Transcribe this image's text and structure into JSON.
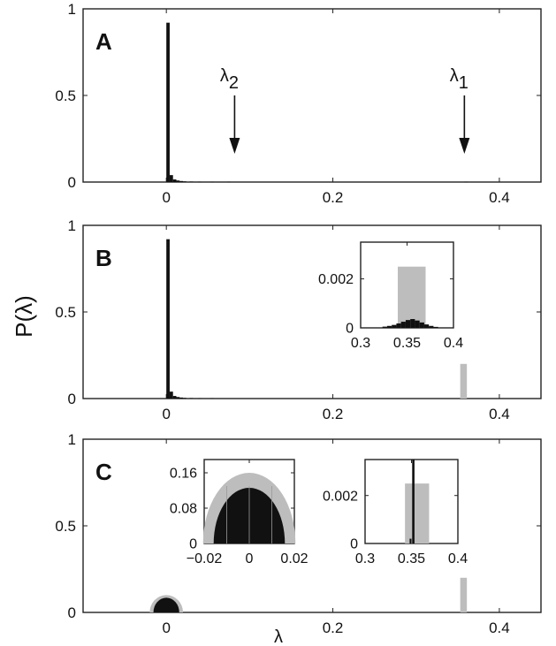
{
  "ylabel": "P(λ)",
  "xlabel": "λ",
  "colors": {
    "black": "#111111",
    "gray": "#bdbdbd",
    "axis": "#222222"
  },
  "chart_data": [
    {
      "id": "A",
      "type": "bar",
      "panel_label": "A",
      "xlim": [
        -0.1,
        0.45
      ],
      "ylim": [
        0,
        1
      ],
      "xticks": [
        {
          "v": 0,
          "t": "0"
        },
        {
          "v": 0.2,
          "t": "0.2"
        },
        {
          "v": 0.4,
          "t": "0.4"
        }
      ],
      "yticks": [
        {
          "v": 0,
          "t": "0"
        },
        {
          "v": 0.5,
          "t": "0.5"
        },
        {
          "v": 1,
          "t": "1"
        }
      ],
      "bin_width": 0.004,
      "series": [
        {
          "color": "black",
          "x": [
            0.002,
            0.006,
            0.01,
            0.014,
            0.018,
            0.022,
            0.03,
            0.04,
            0.055,
            0.075,
            0.36
          ],
          "values": [
            0.92,
            0.04,
            0.015,
            0.009,
            0.006,
            0.004,
            0.003,
            0.002,
            0.002,
            0.002,
            0.002
          ]
        }
      ],
      "annotations": [
        {
          "sym": "λ",
          "sub": "2",
          "x": 0.082
        },
        {
          "sym": "λ",
          "sub": "1",
          "x": 0.358
        }
      ]
    },
    {
      "id": "B",
      "type": "bar",
      "panel_label": "B",
      "xlim": [
        -0.1,
        0.45
      ],
      "ylim": [
        0,
        1
      ],
      "xticks": [
        {
          "v": 0,
          "t": "0"
        },
        {
          "v": 0.2,
          "t": "0.2"
        },
        {
          "v": 0.4,
          "t": "0.4"
        }
      ],
      "yticks": [
        {
          "v": 0,
          "t": "0"
        },
        {
          "v": 0.5,
          "t": "0.5"
        },
        {
          "v": 1,
          "t": "1"
        }
      ],
      "bin_width": 0.004,
      "series": [
        {
          "color": "black",
          "x": [
            0.002,
            0.006,
            0.01,
            0.014,
            0.018,
            0.022,
            0.03,
            0.04,
            0.055
          ],
          "values": [
            0.92,
            0.04,
            0.015,
            0.009,
            0.006,
            0.004,
            0.003,
            0.002,
            0.002
          ]
        },
        {
          "color": "gray",
          "x": [
            0.357
          ],
          "values": [
            0.2
          ],
          "width": 0.008
        }
      ],
      "inset": {
        "xlim": [
          0.3,
          0.4
        ],
        "ylim": [
          0,
          0.0035
        ],
        "xticks": [
          {
            "v": 0.3,
            "t": "0.3"
          },
          {
            "v": 0.35,
            "t": "0.35"
          },
          {
            "v": 0.4,
            "t": "0.4"
          }
        ],
        "yticks": [
          {
            "v": 0,
            "t": "0"
          },
          {
            "v": 0.002,
            "t": "0.002"
          }
        ],
        "series": [
          {
            "color": "gray",
            "x": [
              0.355
            ],
            "values": [
              0.0025
            ],
            "width": 0.03
          },
          {
            "color": "black",
            "x": [
              0.326,
              0.331,
              0.336,
              0.341,
              0.346,
              0.351,
              0.356,
              0.361,
              0.366,
              0.371,
              0.376,
              0.381
            ],
            "values": [
              5e-05,
              8e-05,
              0.00012,
              0.00018,
              0.00025,
              0.00032,
              0.00036,
              0.0003,
              0.00022,
              0.00014,
              8e-05,
              4e-05
            ],
            "width": 0.005
          }
        ]
      }
    },
    {
      "id": "C",
      "type": "area",
      "panel_label": "C",
      "xlim": [
        -0.1,
        0.45
      ],
      "ylim": [
        0,
        1
      ],
      "xticks": [
        {
          "v": 0,
          "t": "0"
        },
        {
          "v": 0.2,
          "t": "0.2"
        },
        {
          "v": 0.4,
          "t": "0.4"
        }
      ],
      "yticks": [
        {
          "v": 0,
          "t": "0"
        },
        {
          "v": 0.5,
          "t": "0.5"
        },
        {
          "v": 1,
          "t": "1"
        }
      ],
      "semicircles": [
        {
          "color": "gray",
          "center": 0,
          "radius": 0.02,
          "height": 0.1
        },
        {
          "color": "black",
          "center": 0,
          "radius": 0.0155,
          "height": 0.085
        }
      ],
      "series": [
        {
          "color": "gray",
          "x": [
            0.357
          ],
          "values": [
            0.2
          ],
          "width": 0.008
        }
      ],
      "insets": [
        {
          "xlim": [
            -0.02,
            0.02
          ],
          "ylim": [
            0,
            0.19
          ],
          "xticks": [
            {
              "v": -0.02,
              "t": "−0.02"
            },
            {
              "v": 0,
              "t": "0"
            },
            {
              "v": 0.02,
              "t": "0.02"
            }
          ],
          "yticks": [
            {
              "v": 0,
              "t": "0"
            },
            {
              "v": 0.08,
              "t": "0.08"
            },
            {
              "v": 0.16,
              "t": "0.16"
            }
          ],
          "semicircles": [
            {
              "color": "gray",
              "center": 0,
              "radius": 0.0205,
              "height": 0.16
            },
            {
              "color": "black",
              "center": 0,
              "radius": 0.0158,
              "height": 0.126
            }
          ]
        },
        {
          "xlim": [
            0.3,
            0.4
          ],
          "ylim": [
            0,
            0.0035
          ],
          "xticks": [
            {
              "v": 0.3,
              "t": "0.3"
            },
            {
              "v": 0.35,
              "t": "0.35"
            },
            {
              "v": 0.4,
              "t": "0.4"
            }
          ],
          "yticks": [
            {
              "v": 0,
              "t": "0"
            },
            {
              "v": 0.002,
              "t": "0.002"
            }
          ],
          "series": [
            {
              "color": "gray",
              "x": [
                0.356
              ],
              "values": [
                0.0025
              ],
              "width": 0.026
            },
            {
              "color": "black",
              "x": [
                0.352
              ],
              "values": [
                0.0035
              ],
              "width": 0.0025
            },
            {
              "color": "black",
              "x": [
                0.349
              ],
              "values": [
                0.0002
              ],
              "width": 0.002
            }
          ]
        }
      ]
    }
  ]
}
